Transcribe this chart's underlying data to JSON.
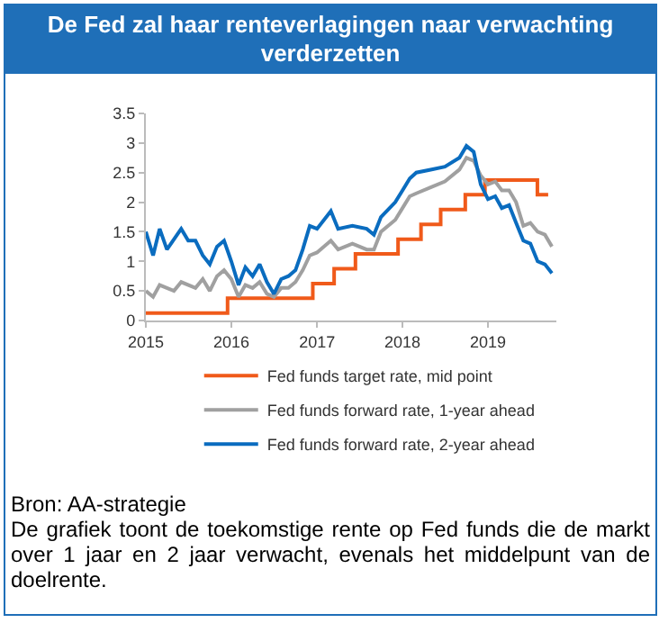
{
  "chart_data": {
    "type": "line",
    "title": "De Fed zal haar renteverlagingen naar verwachting verderzetten",
    "xlim": [
      "2015-01-01",
      "2019-10-20"
    ],
    "xticks": [
      "2015",
      "2016",
      "2017",
      "2018",
      "2019"
    ],
    "ylim": [
      0,
      3.5
    ],
    "yticks": [
      0,
      0.5,
      1,
      1.5,
      2,
      2.5,
      3,
      3.5
    ],
    "grid": false,
    "legend": "bottom",
    "series": [
      {
        "name": "Fed funds target rate, mid point",
        "color": "#f05a1a",
        "type": "step",
        "x": [
          "2015-01-01",
          "2015-12-16",
          "2016-12-14",
          "2017-03-15",
          "2017-06-14",
          "2017-12-13",
          "2018-03-21",
          "2018-06-13",
          "2018-09-26",
          "2018-12-19",
          "2019-07-31",
          "2019-09-15"
        ],
        "values": [
          0.125,
          0.375,
          0.625,
          0.875,
          1.125,
          1.375,
          1.625,
          1.875,
          2.125,
          2.375,
          2.125,
          2.125
        ]
      },
      {
        "name": "Fed funds forward rate, 1-year ahead",
        "color": "#a0a0a0",
        "x": [
          "2015-01",
          "2015-02",
          "2015-03",
          "2015-05",
          "2015-06",
          "2015-08",
          "2015-09",
          "2015-10",
          "2015-11",
          "2015-12",
          "2016-01",
          "2016-02",
          "2016-03",
          "2016-04",
          "2016-05",
          "2016-06",
          "2016-07",
          "2016-08",
          "2016-09",
          "2016-10",
          "2016-11",
          "2016-12",
          "2017-01",
          "2017-03",
          "2017-04",
          "2017-06",
          "2017-08",
          "2017-09",
          "2017-10",
          "2017-12",
          "2018-01",
          "2018-02",
          "2018-03",
          "2018-05",
          "2018-07",
          "2018-09",
          "2018-10",
          "2018-11",
          "2018-12",
          "2019-01",
          "2019-02",
          "2019-03",
          "2019-04",
          "2019-05",
          "2019-06",
          "2019-07",
          "2019-08",
          "2019-09",
          "2019-10"
        ],
        "values": [
          0.5,
          0.4,
          0.6,
          0.5,
          0.65,
          0.55,
          0.7,
          0.5,
          0.75,
          0.85,
          0.7,
          0.4,
          0.6,
          0.55,
          0.65,
          0.45,
          0.4,
          0.55,
          0.55,
          0.65,
          0.85,
          1.1,
          1.15,
          1.35,
          1.2,
          1.3,
          1.2,
          1.2,
          1.5,
          1.7,
          1.9,
          2.1,
          2.15,
          2.25,
          2.35,
          2.55,
          2.75,
          2.7,
          2.45,
          2.3,
          2.35,
          2.2,
          2.2,
          2.0,
          1.6,
          1.65,
          1.5,
          1.45,
          1.25
        ]
      },
      {
        "name": "Fed funds forward rate, 2-year ahead",
        "color": "#0a6cbf",
        "x": [
          "2015-01",
          "2015-02",
          "2015-03",
          "2015-04",
          "2015-06",
          "2015-07",
          "2015-08",
          "2015-09",
          "2015-10",
          "2015-11",
          "2015-12",
          "2016-01",
          "2016-02",
          "2016-03",
          "2016-04",
          "2016-05",
          "2016-06",
          "2016-07",
          "2016-08",
          "2016-09",
          "2016-10",
          "2016-11",
          "2016-12",
          "2017-01",
          "2017-03",
          "2017-04",
          "2017-06",
          "2017-08",
          "2017-09",
          "2017-10",
          "2017-12",
          "2018-01",
          "2018-02",
          "2018-03",
          "2018-05",
          "2018-07",
          "2018-09",
          "2018-10",
          "2018-11",
          "2018-12",
          "2019-01",
          "2019-02",
          "2019-03",
          "2019-04",
          "2019-05",
          "2019-06",
          "2019-07",
          "2019-08",
          "2019-09",
          "2019-10"
        ],
        "values": [
          1.5,
          1.1,
          1.55,
          1.2,
          1.55,
          1.35,
          1.35,
          1.1,
          0.95,
          1.25,
          1.35,
          1.0,
          0.6,
          0.9,
          0.75,
          0.95,
          0.65,
          0.45,
          0.7,
          0.75,
          0.85,
          1.2,
          1.6,
          1.55,
          1.85,
          1.55,
          1.6,
          1.55,
          1.45,
          1.75,
          2.0,
          2.2,
          2.4,
          2.5,
          2.55,
          2.6,
          2.75,
          2.95,
          2.85,
          2.3,
          2.05,
          2.1,
          1.9,
          1.95,
          1.65,
          1.35,
          1.3,
          1.0,
          0.95,
          0.8
        ]
      }
    ],
    "annotations": [
      "Bron: AA-strategie",
      "De grafiek toont de toekomstige rente op Fed funds die de markt over 1 jaar en 2 jaar verwacht, evenals het middelpunt van de doelrente."
    ]
  }
}
